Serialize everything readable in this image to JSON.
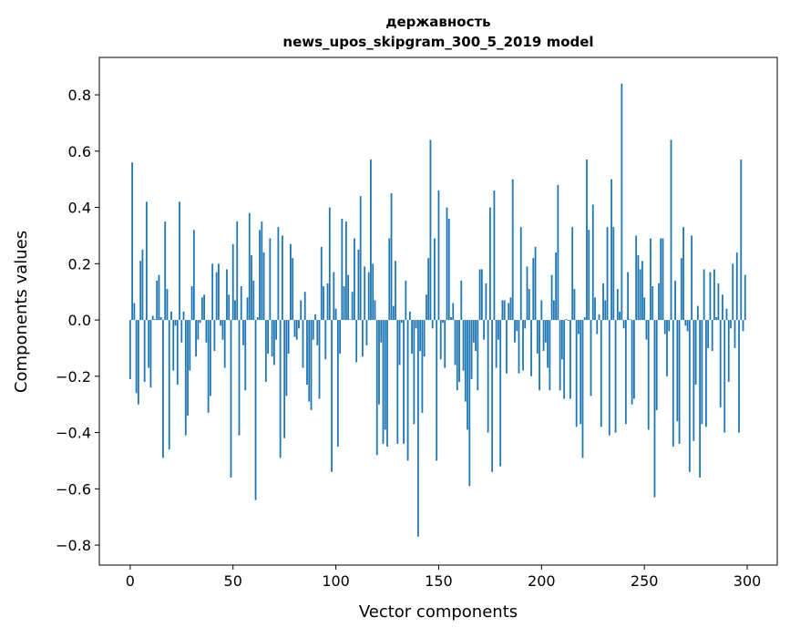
{
  "chart_data": {
    "type": "bar",
    "title": "державность",
    "subtitle": "news_upos_skipgram_300_5_2019 model",
    "xlabel": "Vector components",
    "ylabel": "Components values",
    "xlim": [
      -15,
      314.6
    ],
    "ylim": [
      -0.871,
      0.933
    ],
    "xticks": [
      0,
      50,
      100,
      150,
      200,
      250,
      300
    ],
    "xtick_labels": [
      "0",
      "50",
      "100",
      "150",
      "200",
      "250",
      "300"
    ],
    "yticks": [
      -0.8,
      -0.6,
      -0.4,
      -0.2,
      0.0,
      0.2,
      0.4,
      0.6,
      0.8
    ],
    "ytick_labels": [
      "−0.8",
      "−0.6",
      "−0.4",
      "−0.2",
      "0.0",
      "0.2",
      "0.4",
      "0.6",
      "0.8"
    ],
    "grid": false,
    "bar_color": "#1f77b4",
    "values": [
      -0.21,
      0.56,
      0.06,
      -0.26,
      -0.3,
      0.21,
      0.25,
      -0.22,
      0.42,
      -0.17,
      -0.24,
      0.015,
      0.003,
      0.14,
      0.16,
      0.01,
      -0.49,
      0.35,
      0.11,
      -0.46,
      0.03,
      -0.18,
      -0.02,
      -0.23,
      0.42,
      -0.08,
      0.03,
      -0.41,
      -0.34,
      -0.18,
      0.12,
      0.32,
      -0.13,
      -0.07,
      -0.01,
      0.08,
      0.09,
      -0.08,
      -0.33,
      -0.27,
      0.2,
      -0.11,
      0.17,
      0.2,
      -0.02,
      -0.07,
      -0.17,
      0.18,
      0.09,
      -0.56,
      0.27,
      0.07,
      0.35,
      -0.41,
      0.12,
      -0.09,
      -0.25,
      0.08,
      0.38,
      0.23,
      0.14,
      -0.64,
      0.01,
      0.32,
      0.35,
      0.24,
      -0.22,
      -0.12,
      0.29,
      -0.13,
      -0.16,
      -0.07,
      0.33,
      -0.49,
      0.3,
      -0.42,
      -0.27,
      -0.12,
      0.27,
      0.22,
      -0.06,
      -0.07,
      -0.03,
      0.07,
      -0.17,
      0.1,
      -0.23,
      -0.29,
      -0.32,
      -0.07,
      0.02,
      -0.09,
      -0.28,
      0.26,
      0.12,
      -0.14,
      0.13,
      0.4,
      -0.54,
      0.17,
      0.04,
      -0.45,
      -0.12,
      0.36,
      0.12,
      0.35,
      0.16,
      0.002,
      0.1,
      0.29,
      -0.15,
      0.25,
      0.44,
      -0.13,
      0.19,
      -0.09,
      0.17,
      0.57,
      0.2,
      0.07,
      -0.48,
      -0.3,
      -0.08,
      -0.44,
      -0.39,
      -0.45,
      0.29,
      0.45,
      0.05,
      0.21,
      -0.44,
      -0.16,
      -0.01,
      -0.44,
      0.14,
      -0.5,
      0.03,
      -0.12,
      -0.37,
      -0.03,
      -0.77,
      -0.11,
      -0.33,
      -0.13,
      0.09,
      0.22,
      0.64,
      -0.03,
      0.29,
      -0.5,
      0.46,
      -0.14,
      -0.01,
      -0.17,
      0.4,
      0.36,
      0.01,
      0.06,
      -0.16,
      -0.25,
      -0.22,
      0.14,
      -0.18,
      -0.29,
      -0.39,
      -0.59,
      -0.21,
      -0.08,
      -0.11,
      -0.25,
      0.18,
      0.18,
      -0.07,
      0.13,
      -0.4,
      0.4,
      -0.54,
      0.46,
      -0.17,
      -0.07,
      -0.52,
      0.07,
      0.07,
      -0.19,
      0.06,
      0.08,
      0.5,
      -0.08,
      -0.04,
      -0.19,
      0.33,
      -0.18,
      -0.03,
      0.19,
      0.11,
      -0.2,
      0.22,
      0.26,
      -0.12,
      -0.25,
      0.07,
      -0.11,
      -0.08,
      -0.17,
      -0.25,
      0.16,
      0.07,
      0.24,
      0.48,
      -0.25,
      -0.14,
      -0.28,
      0.003,
      -0.003,
      -0.28,
      0.33,
      0.11,
      -0.38,
      -0.05,
      -0.37,
      -0.49,
      0.01,
      0.57,
      0.32,
      -0.27,
      0.41,
      0.08,
      -0.05,
      0.02,
      -0.38,
      0.13,
      0.07,
      0.33,
      -0.41,
      0.5,
      0.33,
      -0.4,
      0.11,
      0.03,
      0.84,
      -0.03,
      -0.37,
      0.17,
      0.003,
      -0.3,
      -0.28,
      0.3,
      0.23,
      0.18,
      0.21,
      0.08,
      -0.07,
      -0.39,
      0.29,
      0.12,
      -0.63,
      -0.32,
      0.13,
      0.29,
      0.29,
      -0.05,
      -0.2,
      -0.04,
      0.64,
      -0.45,
      0.14,
      -0.36,
      -0.44,
      0.22,
      0.33,
      -0.02,
      -0.04,
      -0.54,
      0.3,
      -0.43,
      -0.23,
      0.05,
      -0.56,
      -0.37,
      0.18,
      -0.38,
      -0.1,
      0.17,
      -0.11,
      0.18,
      0.01,
      0.13,
      -0.31,
      0.09,
      -0.4,
      0.04,
      -0.22,
      -0.03,
      0.2,
      -0.1,
      0.24,
      -0.4,
      0.57,
      -0.04,
      0.16
    ]
  }
}
